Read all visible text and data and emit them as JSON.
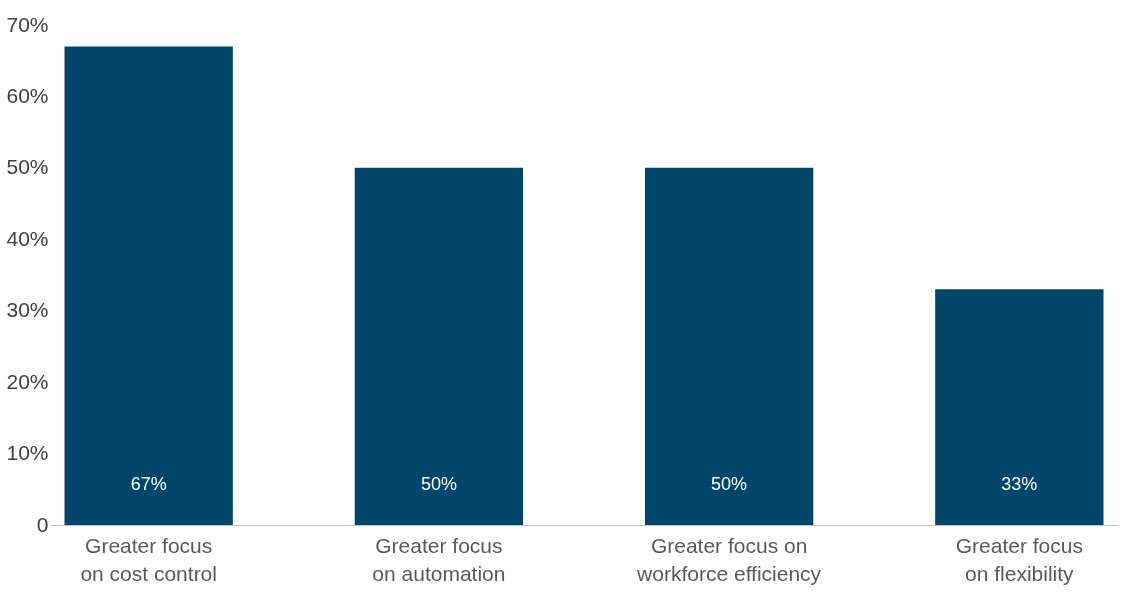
{
  "chart_data": {
    "type": "bar",
    "categories": [
      "Greater focus on cost control",
      "Greater focus on automation",
      "Greater focus on workforce efficiency",
      "Greater focus on flexibility"
    ],
    "values": [
      67,
      50,
      50,
      33
    ],
    "color": "#00466a",
    "value_labels": [
      "67%",
      "50%",
      "50%",
      "33%"
    ],
    "ylim": [
      0,
      70
    ],
    "yticks": [
      0,
      {
        "value": 10,
        "label": "10%"
      },
      {
        "value": 20,
        "label": "20%"
      },
      {
        "value": 30,
        "label": "30%"
      },
      {
        "value": 40,
        "label": "40%"
      },
      {
        "value": 50,
        "label": "50%"
      },
      {
        "value": 60,
        "label": "60%"
      },
      {
        "value": 70,
        "label": "70%"
      }
    ],
    "grid": false
  }
}
